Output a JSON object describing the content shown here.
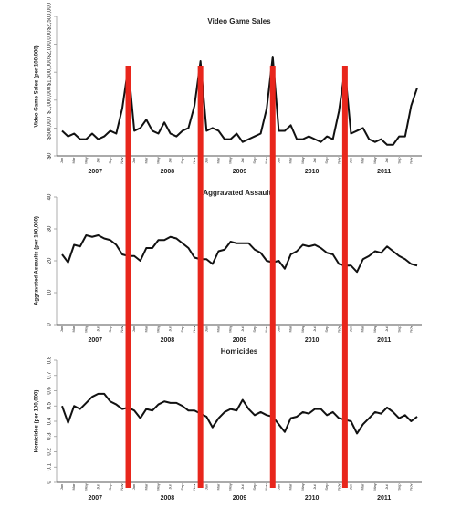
{
  "chart_data": [
    {
      "type": "line",
      "title": "Video Game Sales",
      "y_label": "Video Game Sales (per 100,000)",
      "categories": [
        "Jan",
        null,
        "Mar",
        null,
        "May",
        null,
        "Jul",
        null,
        "Sep",
        null,
        "Nov",
        null,
        "Jan",
        null,
        "Mar",
        null,
        "May",
        null,
        "Jul",
        null,
        "Sep",
        null,
        "Nov",
        null,
        "Jan",
        null,
        "Mar",
        null,
        "May",
        null,
        "Jul",
        null,
        "Sep",
        null,
        "Nov",
        null,
        "Jan",
        null,
        "Mar",
        null,
        "May",
        null,
        "Jul",
        null,
        "Sep",
        null,
        "Nov",
        null,
        "Jan",
        null,
        "Mar",
        null,
        "May",
        null,
        "Jul",
        null,
        "Sep",
        null,
        "Nov",
        null
      ],
      "year_labels": [
        "2007",
        "2008",
        "2009",
        "2010",
        "2011"
      ],
      "ylim": [
        0,
        2500000
      ],
      "yticks": [
        {
          "value": 0,
          "label": "$0"
        },
        {
          "value": 500000,
          "label": "$500,000"
        },
        {
          "value": 1000000,
          "label": "$1,000,000"
        },
        {
          "value": 1500000,
          "label": "$1,500,000"
        },
        {
          "value": 2000000,
          "label": "$2,000,000"
        },
        {
          "value": 2500000,
          "label": "$2,500,000"
        }
      ],
      "color": "#111111",
      "marker_color": "#e8261c",
      "values": [
        450000,
        350000,
        400000,
        300000,
        300000,
        400000,
        300000,
        350000,
        450000,
        400000,
        850000,
        1600000,
        450000,
        500000,
        650000,
        450000,
        400000,
        600000,
        400000,
        350000,
        450000,
        500000,
        900000,
        1700000,
        450000,
        500000,
        450000,
        300000,
        300000,
        400000,
        250000,
        300000,
        350000,
        400000,
        850000,
        1780000,
        450000,
        450000,
        550000,
        300000,
        300000,
        350000,
        300000,
        250000,
        350000,
        300000,
        800000,
        1550000,
        400000,
        450000,
        500000,
        300000,
        250000,
        300000,
        200000,
        200000,
        350000,
        350000,
        900000,
        1220000
      ]
    },
    {
      "type": "line",
      "title": "Aggravated Assaults",
      "y_label": "Aggravated Assaults (per 100,000)",
      "categories": [
        "Jan",
        null,
        "Mar",
        null,
        "May",
        null,
        "Jul",
        null,
        "Sep",
        null,
        "Nov",
        null,
        "Jan",
        null,
        "Mar",
        null,
        "May",
        null,
        "Jul",
        null,
        "Sep",
        null,
        "Nov",
        null,
        "Jan",
        null,
        "Mar",
        null,
        "May",
        null,
        "Jul",
        null,
        "Sep",
        null,
        "Nov",
        null,
        "Jan",
        null,
        "Mar",
        null,
        "May",
        null,
        "Jul",
        null,
        "Sep",
        null,
        "Nov",
        null,
        "Jan",
        null,
        "Mar",
        null,
        "May",
        null,
        "Jul",
        null,
        "Sep",
        null,
        "Nov",
        null
      ],
      "year_labels": [
        "2007",
        "2008",
        "2009",
        "2010",
        "2011"
      ],
      "ylim": [
        0,
        40
      ],
      "yticks": [
        0,
        10,
        20,
        30,
        40
      ],
      "color": "#111111",
      "marker_color": "#e8261c",
      "values": [
        22,
        19.5,
        25,
        24.5,
        28,
        27.5,
        28,
        27,
        26.5,
        25,
        22,
        21.5,
        21.5,
        20,
        24,
        24,
        26.5,
        26.5,
        27.5,
        27,
        25.5,
        24,
        21,
        20.5,
        20.5,
        19,
        23,
        23.5,
        26,
        25.5,
        25.5,
        25.5,
        23.5,
        22.5,
        20,
        19.5,
        20,
        17.5,
        22,
        23,
        25,
        24.5,
        25,
        24,
        22.5,
        22,
        19,
        18.5,
        18.5,
        16.5,
        20.5,
        21.5,
        23,
        22.5,
        24.5,
        23,
        21.5,
        20.5,
        19,
        18.5
      ]
    },
    {
      "type": "line",
      "title": "Homicides",
      "y_label": "Homicides (per 100,000)",
      "categories": [
        "Jan",
        null,
        "Mar",
        null,
        "May",
        null,
        "Jul",
        null,
        "Sep",
        null,
        "Nov",
        null,
        "Jan",
        null,
        "Mar",
        null,
        "May",
        null,
        "Jul",
        null,
        "Sep",
        null,
        "Nov",
        null,
        "Jan",
        null,
        "Mar",
        null,
        "May",
        null,
        "Jul",
        null,
        "Sep",
        null,
        "Nov",
        null,
        "Jan",
        null,
        "Mar",
        null,
        "May",
        null,
        "Jul",
        null,
        "Sep",
        null,
        "Nov",
        null,
        "Jan",
        null,
        "Mar",
        null,
        "May",
        null,
        "Jul",
        null,
        "Sep",
        null,
        "Nov",
        null
      ],
      "year_labels": [
        "2007",
        "2008",
        "2009",
        "2010",
        "2011"
      ],
      "ylim": [
        0,
        0.8
      ],
      "yticks": [
        0,
        0.1,
        0.2,
        0.3,
        0.4,
        0.5,
        0.6,
        0.7,
        0.8
      ],
      "color": "#111111",
      "marker_color": "#e8261c",
      "values": [
        0.5,
        0.39,
        0.5,
        0.48,
        0.52,
        0.56,
        0.58,
        0.58,
        0.53,
        0.51,
        0.48,
        0.49,
        0.47,
        0.42,
        0.48,
        0.47,
        0.51,
        0.53,
        0.52,
        0.52,
        0.5,
        0.47,
        0.47,
        0.45,
        0.43,
        0.36,
        0.42,
        0.46,
        0.48,
        0.47,
        0.54,
        0.48,
        0.44,
        0.46,
        0.44,
        0.43,
        0.38,
        0.33,
        0.42,
        0.43,
        0.46,
        0.45,
        0.48,
        0.48,
        0.44,
        0.46,
        0.42,
        0.41,
        0.4,
        0.32,
        0.38,
        0.42,
        0.46,
        0.45,
        0.49,
        0.46,
        0.42,
        0.44,
        0.4,
        0.43
      ]
    }
  ]
}
